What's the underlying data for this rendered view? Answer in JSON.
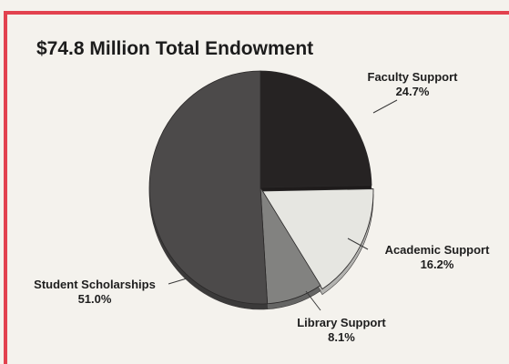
{
  "chart_data": {
    "type": "pie",
    "title": "$74.8 Million Total Endowment",
    "slices": [
      {
        "label": "Faculty Support",
        "value": 24.7,
        "display": "24.7%",
        "color": "#262323"
      },
      {
        "label": "Academic Support",
        "value": 16.2,
        "display": "16.2%",
        "color": "#e6e6e1"
      },
      {
        "label": "Library Support",
        "value": 8.1,
        "display": "8.1%",
        "color": "#828280"
      },
      {
        "label": "Student Scholarships",
        "value": 51.0,
        "display": "51.0%",
        "color": "#4c4a4a"
      }
    ],
    "start": "12 o'clock",
    "direction": "clockwise",
    "legend": "none (labels beside slices)"
  }
}
